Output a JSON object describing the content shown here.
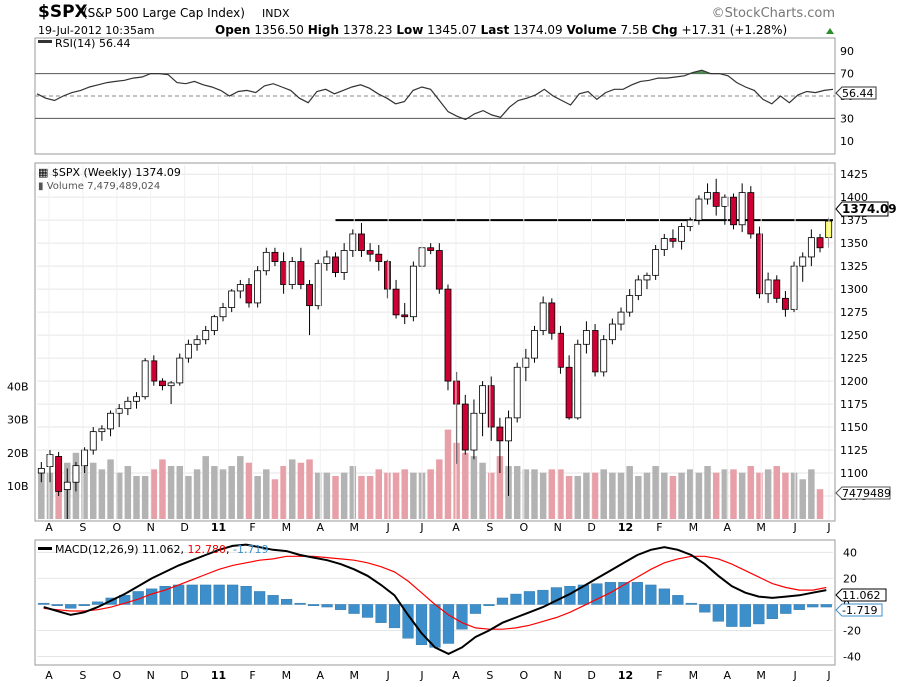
{
  "header": {
    "symbol": "$SPX",
    "name": "(S&P 500 Large Cap Index)",
    "exchange": "INDX",
    "brand": "©StockCharts.com",
    "date": "19-Jul-2012 10:35am",
    "open_label": "Open",
    "open": "1356.50",
    "high_label": "High",
    "high": "1378.23",
    "low_label": "Low",
    "low": "1345.07",
    "last_label": "Last",
    "last": "1374.09",
    "volume_label": "Volume",
    "volume": "7.5B",
    "chg_label": "Chg",
    "chg": "+17.31 (+1.28%)"
  },
  "rsi_panel": {
    "label": "RSI(14)",
    "value": "56.44",
    "badge": "56.44",
    "ticks": [
      "90",
      "70",
      "50",
      "30",
      "10"
    ]
  },
  "price_panel": {
    "label": "$SPX (Weekly)",
    "last": "1374.09",
    "volume_label": "Volume",
    "volume_value": "7,479,489,024",
    "last_badge": "1374.09",
    "volume_badge": "7479489",
    "price_ticks": [
      "1425",
      "1400",
      "1375",
      "1350",
      "1325",
      "1300",
      "1275",
      "1250",
      "1225",
      "1200",
      "1175",
      "1150",
      "1125",
      "1100",
      "1075"
    ],
    "volume_ticks": [
      "40B",
      "30B",
      "20B",
      "10B"
    ]
  },
  "macd_panel": {
    "label": "MACD(12,26,9)",
    "macd": "11.062",
    "signal": "12.780",
    "hist": "-1.719",
    "macd_badge": "11.062",
    "hist_badge": "-1.719",
    "ticks": [
      "40",
      "20",
      "0",
      "-20",
      "-40"
    ]
  },
  "x_axis": [
    "A",
    "S",
    "O",
    "N",
    "D",
    "11",
    "F",
    "M",
    "A",
    "M",
    "J",
    "J",
    "A",
    "S",
    "O",
    "N",
    "D",
    "12",
    "F",
    "M",
    "A",
    "M",
    "J",
    "J"
  ],
  "colors": {
    "up_body": "#ffffff",
    "down_body": "#cc0033",
    "volume_up": "#b3b3b3",
    "volume_down": "#e8a0a8",
    "macd_line": "#000000",
    "signal_line": "#ff0000",
    "histogram": "#3d8fcc",
    "rsi_line": "#333333",
    "rsi_overbought_fill": "#4d8c4d",
    "grid": "#e6e6e6",
    "resistance_line": "#000000",
    "last_badge": "#ffff66"
  },
  "chart_data": {
    "type": "candlestick",
    "title": "$SPX (S&P 500 Large Cap Index) Weekly",
    "x_range": [
      "2010-07-23",
      "2012-07-19"
    ],
    "price_ylim": [
      1050,
      1435
    ],
    "resistance_level": 1375,
    "candles_ohlc": [
      [
        1100,
        1112,
        1090,
        1105
      ],
      [
        1107,
        1125,
        1090,
        1120
      ],
      [
        1118,
        1123,
        1075,
        1080
      ],
      [
        1082,
        1105,
        1050,
        1090
      ],
      [
        1090,
        1112,
        1080,
        1108
      ],
      [
        1108,
        1128,
        1100,
        1125
      ],
      [
        1125,
        1150,
        1120,
        1145
      ],
      [
        1145,
        1152,
        1135,
        1148
      ],
      [
        1148,
        1168,
        1140,
        1165
      ],
      [
        1165,
        1175,
        1150,
        1170
      ],
      [
        1170,
        1183,
        1163,
        1178
      ],
      [
        1178,
        1188,
        1170,
        1183
      ],
      [
        1183,
        1225,
        1180,
        1222
      ],
      [
        1222,
        1228,
        1195,
        1200
      ],
      [
        1200,
        1203,
        1190,
        1195
      ],
      [
        1195,
        1200,
        1175,
        1198
      ],
      [
        1198,
        1230,
        1195,
        1225
      ],
      [
        1225,
        1245,
        1220,
        1240
      ],
      [
        1240,
        1250,
        1233,
        1245
      ],
      [
        1245,
        1260,
        1240,
        1255
      ],
      [
        1255,
        1272,
        1250,
        1270
      ],
      [
        1270,
        1285,
        1265,
        1280
      ],
      [
        1280,
        1300,
        1275,
        1298
      ],
      [
        1298,
        1310,
        1290,
        1305
      ],
      [
        1305,
        1312,
        1280,
        1285
      ],
      [
        1285,
        1325,
        1280,
        1320
      ],
      [
        1320,
        1345,
        1315,
        1340
      ],
      [
        1340,
        1345,
        1325,
        1330
      ],
      [
        1330,
        1340,
        1295,
        1305
      ],
      [
        1305,
        1335,
        1300,
        1330
      ],
      [
        1330,
        1345,
        1300,
        1305
      ],
      [
        1305,
        1310,
        1250,
        1282
      ],
      [
        1282,
        1332,
        1278,
        1328
      ],
      [
        1328,
        1342,
        1320,
        1335
      ],
      [
        1335,
        1340,
        1313,
        1318
      ],
      [
        1318,
        1350,
        1310,
        1342
      ],
      [
        1342,
        1365,
        1335,
        1360
      ],
      [
        1360,
        1372,
        1335,
        1342
      ],
      [
        1342,
        1350,
        1330,
        1338
      ],
      [
        1338,
        1348,
        1320,
        1330
      ],
      [
        1330,
        1332,
        1290,
        1300
      ],
      [
        1300,
        1310,
        1268,
        1272
      ],
      [
        1272,
        1285,
        1262,
        1270
      ],
      [
        1270,
        1330,
        1265,
        1325
      ],
      [
        1325,
        1352,
        1320,
        1345
      ],
      [
        1345,
        1350,
        1338,
        1342
      ],
      [
        1342,
        1350,
        1295,
        1300
      ],
      [
        1300,
        1305,
        1190,
        1200
      ],
      [
        1200,
        1210,
        1110,
        1175
      ],
      [
        1175,
        1185,
        1120,
        1125
      ],
      [
        1125,
        1180,
        1115,
        1165
      ],
      [
        1165,
        1200,
        1140,
        1195
      ],
      [
        1195,
        1205,
        1135,
        1150
      ],
      [
        1150,
        1160,
        1100,
        1135
      ],
      [
        1135,
        1168,
        1075,
        1160
      ],
      [
        1160,
        1220,
        1155,
        1215
      ],
      [
        1215,
        1235,
        1200,
        1225
      ],
      [
        1225,
        1260,
        1220,
        1255
      ],
      [
        1255,
        1292,
        1250,
        1285
      ],
      [
        1285,
        1290,
        1245,
        1252
      ],
      [
        1252,
        1260,
        1208,
        1215
      ],
      [
        1215,
        1228,
        1158,
        1160
      ],
      [
        1160,
        1245,
        1158,
        1240
      ],
      [
        1240,
        1265,
        1230,
        1255
      ],
      [
        1255,
        1262,
        1205,
        1210
      ],
      [
        1210,
        1250,
        1205,
        1245
      ],
      [
        1245,
        1268,
        1240,
        1262
      ],
      [
        1262,
        1280,
        1255,
        1275
      ],
      [
        1275,
        1300,
        1270,
        1293
      ],
      [
        1293,
        1315,
        1288,
        1310
      ],
      [
        1310,
        1318,
        1300,
        1315
      ],
      [
        1315,
        1348,
        1310,
        1343
      ],
      [
        1343,
        1360,
        1336,
        1355
      ],
      [
        1355,
        1365,
        1345,
        1352
      ],
      [
        1352,
        1372,
        1343,
        1368
      ],
      [
        1368,
        1378,
        1363,
        1375
      ],
      [
        1375,
        1402,
        1370,
        1398
      ],
      [
        1398,
        1415,
        1392,
        1405
      ],
      [
        1405,
        1420,
        1380,
        1390
      ],
      [
        1390,
        1403,
        1370,
        1400
      ],
      [
        1400,
        1404,
        1365,
        1370
      ],
      [
        1370,
        1415,
        1362,
        1405
      ],
      [
        1405,
        1412,
        1355,
        1360
      ],
      [
        1360,
        1368,
        1290,
        1295
      ],
      [
        1295,
        1318,
        1285,
        1310
      ],
      [
        1310,
        1315,
        1285,
        1290
      ],
      [
        1290,
        1298,
        1270,
        1278
      ],
      [
        1278,
        1330,
        1275,
        1325
      ],
      [
        1325,
        1340,
        1308,
        1335
      ],
      [
        1335,
        1365,
        1325,
        1356
      ],
      [
        1356,
        1360,
        1340,
        1345
      ],
      [
        1356,
        1378,
        1345,
        1374
      ]
    ],
    "volume_billions": [
      14,
      14,
      15,
      17,
      20,
      18,
      17,
      15,
      18,
      14,
      16,
      13,
      13,
      15,
      18,
      16,
      16,
      13,
      15,
      19,
      16,
      15,
      16,
      19,
      17,
      13,
      15,
      12,
      16,
      18,
      17,
      18,
      14,
      14,
      13,
      14,
      16,
      13,
      13,
      15,
      14,
      14,
      15,
      14,
      14,
      15,
      18,
      27,
      23,
      20,
      19,
      17,
      14,
      19,
      16,
      16,
      15,
      15,
      14,
      15,
      15,
      13,
      13,
      14,
      14,
      15,
      14,
      14,
      16,
      13,
      14,
      16,
      14,
      13,
      14,
      15,
      14,
      16,
      14,
      15,
      15,
      14,
      16,
      14,
      15,
      16,
      14,
      14,
      12,
      15,
      9
    ],
    "rsi14": [
      52,
      48,
      46,
      50,
      53,
      55,
      58,
      60,
      62,
      63,
      64,
      66,
      67,
      70,
      70,
      69,
      62,
      61,
      63,
      60,
      58,
      55,
      50,
      54,
      55,
      53,
      59,
      61,
      58,
      55,
      48,
      44,
      54,
      56,
      52,
      55,
      58,
      60,
      57,
      52,
      48,
      43,
      45,
      55,
      58,
      56,
      46,
      36,
      32,
      29,
      34,
      37,
      33,
      31,
      40,
      46,
      48,
      51,
      56,
      50,
      46,
      42,
      52,
      54,
      47,
      53,
      56,
      56,
      60,
      63,
      64,
      66,
      66,
      67,
      68,
      71,
      73,
      70,
      70,
      68,
      62,
      58,
      55,
      47,
      43,
      50,
      44,
      51,
      54,
      53,
      55,
      56
    ],
    "macd": [
      -2,
      -5,
      -8,
      -6,
      -2,
      3,
      8,
      14,
      20,
      25,
      30,
      34,
      38,
      42,
      45,
      46,
      44,
      42,
      41,
      38,
      36,
      34,
      31,
      27,
      22,
      15,
      7,
      -8,
      -22,
      -33,
      -38,
      -33,
      -25,
      -20,
      -14,
      -10,
      -6,
      -2,
      3,
      8,
      14,
      20,
      26,
      32,
      38,
      42,
      44,
      42,
      38,
      31,
      22,
      14,
      9,
      6,
      5,
      6,
      7,
      9,
      11
    ],
    "macd_signal": [
      -3,
      -4,
      -5,
      -5,
      -4,
      -2,
      1,
      4,
      8,
      11,
      15,
      19,
      23,
      27,
      30,
      32,
      34,
      35,
      37,
      37,
      37,
      36,
      35,
      34,
      32,
      29,
      25,
      18,
      9,
      0,
      -8,
      -14,
      -18,
      -19,
      -19,
      -18,
      -16,
      -13,
      -10,
      -6,
      -1,
      4,
      9,
      15,
      21,
      27,
      32,
      35,
      37,
      37,
      35,
      31,
      26,
      21,
      16,
      13,
      11,
      11,
      13
    ],
    "macd_histogram": [
      1,
      -1,
      -3,
      -1,
      2,
      5,
      7,
      10,
      12,
      14,
      15,
      15,
      15,
      15,
      15,
      14,
      10,
      7,
      4,
      1,
      -1,
      -2,
      -4,
      -7,
      -10,
      -14,
      -18,
      -26,
      -31,
      -33,
      -30,
      -19,
      -7,
      -1,
      5,
      8,
      10,
      11,
      13,
      14,
      15,
      16,
      17,
      17,
      17,
      15,
      12,
      7,
      1,
      -6,
      -13,
      -17,
      -17,
      -15,
      -11,
      -7,
      -4,
      -2,
      -2
    ],
    "rsi_ylim": [
      0,
      100
    ],
    "macd_ylim": [
      -45,
      48
    ]
  }
}
